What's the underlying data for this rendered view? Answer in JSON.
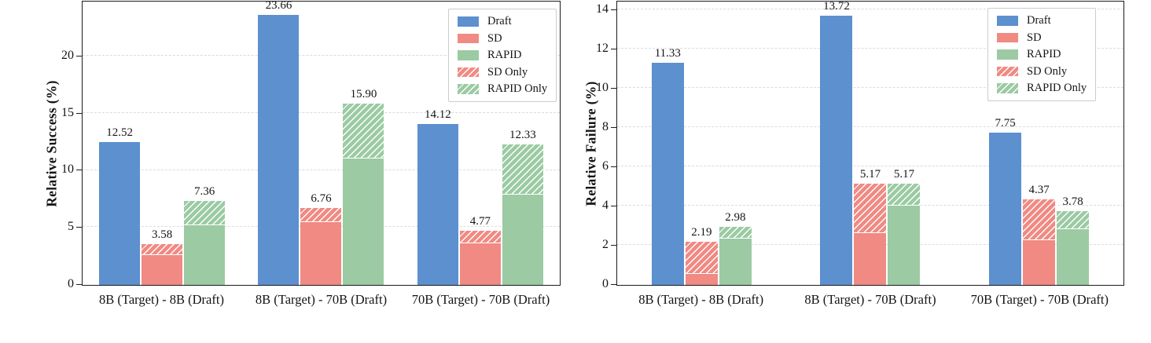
{
  "colors": {
    "draft": "#5c90cf",
    "sd": "#f08a83",
    "rapid": "#9bcaa3",
    "hatch_stripe": "#ffffff",
    "grid": "#dcdcdc",
    "spine": "#1c1c1c",
    "text": "#141414",
    "legend_border": "#cccccc"
  },
  "legend": {
    "items": [
      {
        "label": "Draft",
        "style": "solid",
        "color_key": "draft"
      },
      {
        "label": "SD",
        "style": "solid",
        "color_key": "sd"
      },
      {
        "label": "RAPID",
        "style": "solid",
        "color_key": "rapid"
      },
      {
        "label": "SD Only",
        "style": "hatched",
        "color_key": "sd"
      },
      {
        "label": "RAPID Only",
        "style": "hatched",
        "color_key": "rapid"
      }
    ]
  },
  "chart_data": [
    {
      "type": "bar",
      "ylabel": "Relative Success (%)",
      "ymax": 24.7,
      "yticks": [
        "0",
        "5",
        "10",
        "15",
        "20"
      ],
      "grid": "horizontal dashed",
      "legend_position": "upper right",
      "categories": [
        "8B (Target) - 8B (Draft)",
        "8B (Target) - 70B (Draft)",
        "70B (Target) - 70B (Draft)"
      ],
      "groups": [
        {
          "category": "8B (Target) - 8B (Draft)",
          "draft": 12.52,
          "draft_label": "12.52",
          "sd_solid": 2.65,
          "sd_total": 3.58,
          "sd_label": "3.58",
          "rapid_solid": 5.25,
          "rapid_total": 7.36,
          "rapid_label": "7.36"
        },
        {
          "category": "8B (Target) - 70B (Draft)",
          "draft": 23.66,
          "draft_label": "23.66",
          "sd_solid": 5.5,
          "sd_total": 6.76,
          "sd_label": "6.76",
          "rapid_solid": 11.1,
          "rapid_total": 15.9,
          "rapid_label": "15.90"
        },
        {
          "category": "70B (Target) - 70B (Draft)",
          "draft": 14.12,
          "draft_label": "14.12",
          "sd_solid": 3.65,
          "sd_total": 4.77,
          "sd_label": "4.77",
          "rapid_solid": 7.9,
          "rapid_total": 12.33,
          "rapid_label": "12.33"
        }
      ]
    },
    {
      "type": "bar",
      "ylabel": "Relative Failure (%)",
      "ymax": 14.37,
      "yticks": [
        "0",
        "2",
        "4",
        "6",
        "8",
        "10",
        "12",
        "14"
      ],
      "grid": "horizontal dashed",
      "legend_position": "upper right",
      "categories": [
        "8B (Target) - 8B (Draft)",
        "8B (Target) - 70B (Draft)",
        "70B (Target) - 70B (Draft)"
      ],
      "groups": [
        {
          "category": "8B (Target) - 8B (Draft)",
          "draft": 11.33,
          "draft_label": "11.33",
          "sd_solid": 0.55,
          "sd_total": 2.19,
          "sd_label": "2.19",
          "rapid_solid": 2.35,
          "rapid_total": 2.98,
          "rapid_label": "2.98"
        },
        {
          "category": "8B (Target) - 70B (Draft)",
          "draft": 13.72,
          "draft_label": "13.72",
          "sd_solid": 2.65,
          "sd_total": 5.17,
          "sd_label": "5.17",
          "rapid_solid": 4.05,
          "rapid_total": 5.17,
          "rapid_label": "5.17"
        },
        {
          "category": "70B (Target) - 70B (Draft)",
          "draft": 7.75,
          "draft_label": "7.75",
          "sd_solid": 2.3,
          "sd_total": 4.37,
          "sd_label": "4.37",
          "rapid_solid": 2.85,
          "rapid_total": 3.78,
          "rapid_label": "3.78"
        }
      ]
    }
  ]
}
